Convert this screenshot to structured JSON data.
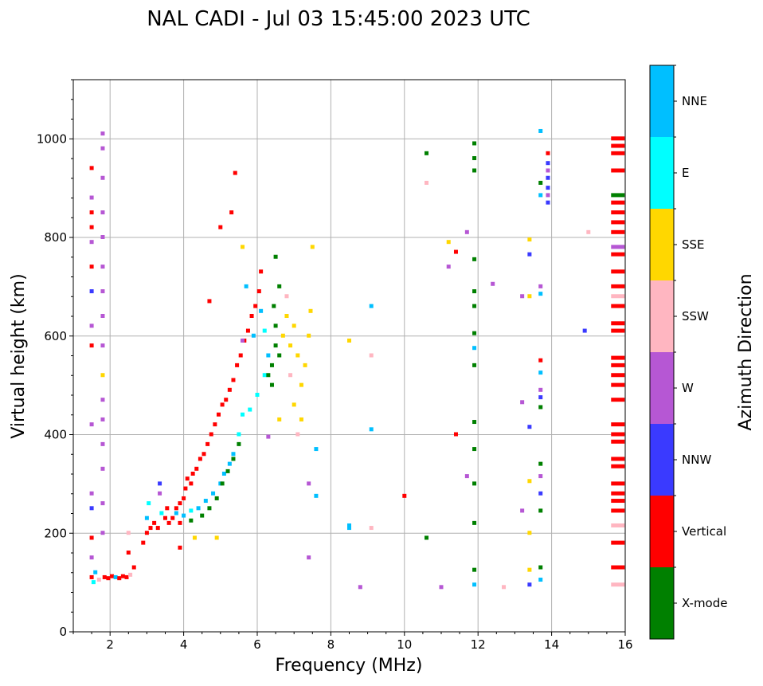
{
  "chart_data": {
    "type": "scatter",
    "title": "NAL CADI - Jul 03 15:45:00 2023 UTC",
    "xlabel": "Frequency (MHz)",
    "ylabel": "Virtual height (km)",
    "xlim": [
      1,
      16
    ],
    "ylim": [
      0,
      1120
    ],
    "xticks": [
      2,
      4,
      6,
      8,
      10,
      12,
      14,
      16
    ],
    "yticks": [
      0,
      200,
      400,
      600,
      800,
      1000
    ],
    "grid": true,
    "colorbar": {
      "label": "Azimuth Direction",
      "categories": [
        "X-mode",
        "Vertical",
        "NNW",
        "W",
        "SSW",
        "SSE",
        "E",
        "NNE"
      ],
      "colors": [
        "#008000",
        "#ff0000",
        "#3a3aff",
        "#b657d4",
        "#ffb6c1",
        "#ffd700",
        "#00ffff",
        "#00bfff"
      ]
    },
    "points": [
      [
        1.5,
        110,
        1
      ],
      [
        1.55,
        100,
        6
      ],
      [
        1.6,
        120,
        7
      ],
      [
        1.7,
        105,
        4
      ],
      [
        1.85,
        110,
        1
      ],
      [
        1.95,
        108,
        1
      ],
      [
        2.05,
        112,
        1
      ],
      [
        2.15,
        110,
        7
      ],
      [
        2.25,
        108,
        1
      ],
      [
        2.35,
        112,
        1
      ],
      [
        2.45,
        110,
        1
      ],
      [
        2.55,
        115,
        4
      ],
      [
        2.65,
        130,
        1
      ],
      [
        1.5,
        150,
        3
      ],
      [
        1.5,
        190,
        1
      ],
      [
        1.5,
        250,
        2
      ],
      [
        1.5,
        280,
        3
      ],
      [
        1.5,
        420,
        3
      ],
      [
        1.5,
        580,
        1
      ],
      [
        1.5,
        620,
        3
      ],
      [
        1.5,
        690,
        2
      ],
      [
        1.5,
        740,
        1
      ],
      [
        1.5,
        790,
        3
      ],
      [
        1.5,
        820,
        1
      ],
      [
        1.5,
        850,
        1
      ],
      [
        1.5,
        880,
        3
      ],
      [
        1.5,
        940,
        1
      ],
      [
        1.8,
        200,
        3
      ],
      [
        1.8,
        260,
        3
      ],
      [
        1.8,
        330,
        3
      ],
      [
        1.8,
        380,
        3
      ],
      [
        1.8,
        430,
        3
      ],
      [
        1.8,
        470,
        3
      ],
      [
        1.8,
        520,
        5
      ],
      [
        1.8,
        580,
        3
      ],
      [
        1.8,
        640,
        3
      ],
      [
        1.8,
        690,
        3
      ],
      [
        1.8,
        740,
        3
      ],
      [
        1.8,
        800,
        3
      ],
      [
        1.8,
        850,
        3
      ],
      [
        1.8,
        920,
        3
      ],
      [
        1.8,
        980,
        3
      ],
      [
        1.8,
        1010,
        3
      ],
      [
        2.5,
        160,
        1
      ],
      [
        2.5,
        200,
        4
      ],
      [
        2.9,
        180,
        1
      ],
      [
        3.0,
        200,
        1
      ],
      [
        3.0,
        230,
        7
      ],
      [
        3.05,
        260,
        6
      ],
      [
        3.1,
        210,
        1
      ],
      [
        3.2,
        220,
        1
      ],
      [
        3.3,
        210,
        1
      ],
      [
        3.35,
        280,
        3
      ],
      [
        3.35,
        300,
        2
      ],
      [
        3.4,
        240,
        6
      ],
      [
        3.5,
        230,
        1
      ],
      [
        3.55,
        250,
        1
      ],
      [
        3.6,
        220,
        1
      ],
      [
        3.7,
        230,
        1
      ],
      [
        3.8,
        250,
        1
      ],
      [
        3.9,
        260,
        1
      ],
      [
        3.9,
        220,
        1
      ],
      [
        4.0,
        270,
        1
      ],
      [
        4.05,
        290,
        1
      ],
      [
        4.1,
        310,
        1
      ],
      [
        4.2,
        300,
        1
      ],
      [
        4.25,
        320,
        1
      ],
      [
        4.35,
        330,
        1
      ],
      [
        4.45,
        350,
        1
      ],
      [
        4.55,
        360,
        1
      ],
      [
        4.65,
        380,
        1
      ],
      [
        4.75,
        400,
        1
      ],
      [
        4.85,
        420,
        1
      ],
      [
        4.95,
        440,
        1
      ],
      [
        5.05,
        460,
        1
      ],
      [
        5.15,
        470,
        1
      ],
      [
        5.25,
        490,
        1
      ],
      [
        5.35,
        510,
        1
      ],
      [
        5.45,
        540,
        1
      ],
      [
        5.55,
        560,
        1
      ],
      [
        5.65,
        590,
        1
      ],
      [
        5.75,
        610,
        1
      ],
      [
        5.85,
        640,
        1
      ],
      [
        5.95,
        660,
        1
      ],
      [
        6.05,
        690,
        1
      ],
      [
        6.1,
        730,
        1
      ],
      [
        5.4,
        930,
        1
      ],
      [
        5.3,
        850,
        1
      ],
      [
        5.0,
        820,
        1
      ],
      [
        4.7,
        670,
        1
      ],
      [
        3.8,
        240,
        7
      ],
      [
        4.0,
        235,
        7
      ],
      [
        4.2,
        245,
        6
      ],
      [
        4.4,
        250,
        7
      ],
      [
        4.6,
        265,
        7
      ],
      [
        4.8,
        280,
        7
      ],
      [
        5.0,
        300,
        7
      ],
      [
        5.1,
        320,
        7
      ],
      [
        5.25,
        340,
        7
      ],
      [
        5.35,
        360,
        7
      ],
      [
        5.5,
        400,
        6
      ],
      [
        5.6,
        440,
        6
      ],
      [
        5.8,
        450,
        6
      ],
      [
        6.0,
        480,
        6
      ],
      [
        6.2,
        520,
        6
      ],
      [
        6.3,
        560,
        7
      ],
      [
        6.2,
        610,
        6
      ],
      [
        6.1,
        650,
        7
      ],
      [
        5.9,
        600,
        7
      ],
      [
        5.7,
        700,
        7
      ],
      [
        4.2,
        225,
        0
      ],
      [
        4.5,
        235,
        0
      ],
      [
        4.7,
        250,
        0
      ],
      [
        4.9,
        270,
        0
      ],
      [
        5.05,
        300,
        0
      ],
      [
        5.2,
        325,
        0
      ],
      [
        5.35,
        350,
        0
      ],
      [
        5.5,
        380,
        0
      ],
      [
        6.4,
        500,
        0
      ],
      [
        6.4,
        540,
        0
      ],
      [
        6.5,
        580,
        0
      ],
      [
        6.5,
        620,
        0
      ],
      [
        6.45,
        660,
        0
      ],
      [
        6.6,
        700,
        0
      ],
      [
        6.5,
        760,
        0
      ],
      [
        6.3,
        520,
        0
      ],
      [
        6.6,
        560,
        0
      ],
      [
        6.7,
        600,
        5
      ],
      [
        6.8,
        640,
        5
      ],
      [
        6.9,
        580,
        5
      ],
      [
        7.0,
        620,
        5
      ],
      [
        7.1,
        560,
        5
      ],
      [
        7.2,
        500,
        5
      ],
      [
        7.3,
        540,
        5
      ],
      [
        7.4,
        600,
        5
      ],
      [
        7.45,
        650,
        5
      ],
      [
        7.0,
        460,
        5
      ],
      [
        6.6,
        430,
        5
      ],
      [
        7.2,
        430,
        5
      ],
      [
        7.5,
        780,
        5
      ],
      [
        5.6,
        780,
        5
      ],
      [
        6.9,
        520,
        4
      ],
      [
        7.1,
        400,
        4
      ],
      [
        6.8,
        680,
        4
      ],
      [
        6.3,
        395,
        3
      ],
      [
        5.6,
        590,
        3
      ],
      [
        4.9,
        190,
        5
      ],
      [
        4.3,
        190,
        5
      ],
      [
        3.9,
        170,
        1
      ],
      [
        7.6,
        370,
        7
      ],
      [
        7.6,
        275,
        7
      ],
      [
        7.4,
        300,
        3
      ],
      [
        7.4,
        150,
        3
      ],
      [
        8.5,
        590,
        5
      ],
      [
        8.5,
        215,
        7
      ],
      [
        8.5,
        210,
        7
      ],
      [
        8.8,
        90,
        3
      ],
      [
        9.1,
        660,
        7
      ],
      [
        9.1,
        410,
        7
      ],
      [
        9.1,
        210,
        4
      ],
      [
        9.1,
        560,
        4
      ],
      [
        10.0,
        275,
        1
      ],
      [
        10.6,
        970,
        0
      ],
      [
        10.6,
        190,
        0
      ],
      [
        10.6,
        910,
        4
      ],
      [
        11.0,
        90,
        3
      ],
      [
        11.2,
        790,
        5
      ],
      [
        11.2,
        740,
        3
      ],
      [
        11.4,
        770,
        1
      ],
      [
        11.4,
        400,
        1
      ],
      [
        11.7,
        810,
        3
      ],
      [
        11.7,
        315,
        3
      ],
      [
        11.9,
        990,
        0
      ],
      [
        11.9,
        960,
        0
      ],
      [
        11.9,
        935,
        0
      ],
      [
        11.9,
        755,
        0
      ],
      [
        11.9,
        690,
        0
      ],
      [
        11.9,
        660,
        0
      ],
      [
        11.9,
        605,
        0
      ],
      [
        11.9,
        575,
        7
      ],
      [
        11.9,
        540,
        0
      ],
      [
        11.9,
        425,
        0
      ],
      [
        11.9,
        370,
        0
      ],
      [
        11.9,
        300,
        0
      ],
      [
        11.9,
        220,
        0
      ],
      [
        11.9,
        125,
        0
      ],
      [
        11.9,
        95,
        7
      ],
      [
        12.4,
        705,
        3
      ],
      [
        12.7,
        90,
        4
      ],
      [
        13.2,
        680,
        3
      ],
      [
        13.2,
        465,
        3
      ],
      [
        13.2,
        245,
        3
      ],
      [
        13.4,
        795,
        5
      ],
      [
        13.4,
        765,
        2
      ],
      [
        13.4,
        680,
        5
      ],
      [
        13.4,
        415,
        2
      ],
      [
        13.4,
        305,
        5
      ],
      [
        13.4,
        200,
        5
      ],
      [
        13.4,
        125,
        5
      ],
      [
        13.4,
        95,
        2
      ],
      [
        13.7,
        1015,
        7
      ],
      [
        13.7,
        910,
        0
      ],
      [
        13.7,
        885,
        7
      ],
      [
        13.7,
        700,
        3
      ],
      [
        13.7,
        685,
        7
      ],
      [
        13.7,
        550,
        1
      ],
      [
        13.7,
        525,
        7
      ],
      [
        13.7,
        490,
        3
      ],
      [
        13.7,
        475,
        2
      ],
      [
        13.7,
        455,
        0
      ],
      [
        13.7,
        340,
        0
      ],
      [
        13.7,
        315,
        3
      ],
      [
        13.7,
        280,
        2
      ],
      [
        13.7,
        245,
        0
      ],
      [
        13.7,
        130,
        0
      ],
      [
        13.7,
        105,
        7
      ],
      [
        13.9,
        970,
        1
      ],
      [
        13.9,
        950,
        2
      ],
      [
        13.9,
        935,
        3
      ],
      [
        13.9,
        920,
        2
      ],
      [
        13.9,
        900,
        2
      ],
      [
        13.9,
        885,
        3
      ],
      [
        13.9,
        870,
        2
      ],
      [
        14.9,
        610,
        2
      ],
      [
        15.0,
        810,
        4
      ],
      [
        15.8,
        1000,
        1
      ],
      [
        15.8,
        985,
        1
      ],
      [
        15.8,
        970,
        1
      ],
      [
        15.8,
        935,
        1
      ],
      [
        15.8,
        885,
        0
      ],
      [
        15.8,
        870,
        1
      ],
      [
        15.8,
        850,
        1
      ],
      [
        15.8,
        830,
        1
      ],
      [
        15.8,
        810,
        1
      ],
      [
        15.8,
        780,
        3
      ],
      [
        15.8,
        765,
        1
      ],
      [
        15.8,
        730,
        1
      ],
      [
        15.8,
        700,
        1
      ],
      [
        15.8,
        680,
        4
      ],
      [
        15.8,
        660,
        1
      ],
      [
        15.8,
        625,
        1
      ],
      [
        15.8,
        610,
        1
      ],
      [
        15.8,
        555,
        1
      ],
      [
        15.8,
        540,
        1
      ],
      [
        15.8,
        520,
        1
      ],
      [
        15.8,
        500,
        1
      ],
      [
        15.8,
        470,
        1
      ],
      [
        15.8,
        420,
        1
      ],
      [
        15.8,
        400,
        1
      ],
      [
        15.8,
        385,
        1
      ],
      [
        15.8,
        350,
        1
      ],
      [
        15.8,
        335,
        1
      ],
      [
        15.8,
        300,
        1
      ],
      [
        15.8,
        280,
        1
      ],
      [
        15.8,
        265,
        1
      ],
      [
        15.8,
        245,
        1
      ],
      [
        15.8,
        215,
        4
      ],
      [
        15.8,
        180,
        1
      ],
      [
        15.8,
        130,
        1
      ],
      [
        15.8,
        95,
        4
      ]
    ]
  }
}
